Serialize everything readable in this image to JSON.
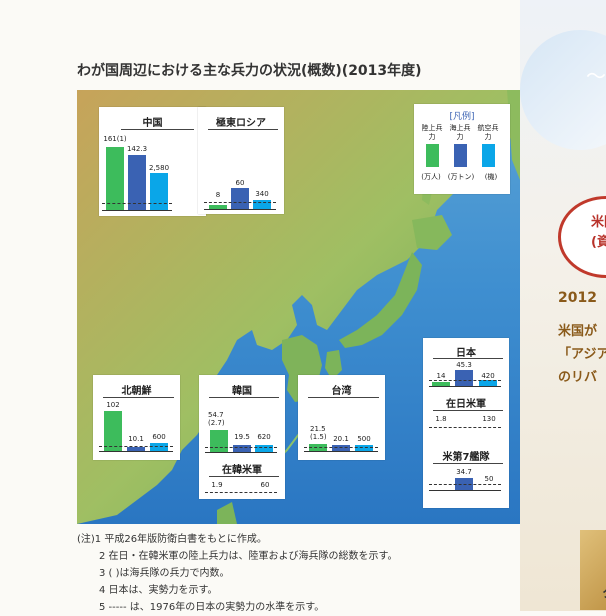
{
  "title": "わが国周辺における主な兵力の状況(概数)(2013年度)",
  "legend": {
    "title": "[凡例]",
    "items": [
      {
        "label": "陸上兵力",
        "unit": "(万人)",
        "color": "#3dbc5c"
      },
      {
        "label": "海上兵力",
        "unit": "(万トン)",
        "color": "#3a62b3"
      },
      {
        "label": "航空兵力",
        "unit": "(機)",
        "color": "#0aa6e8"
      }
    ]
  },
  "chart_data": [
    {
      "type": "bar",
      "title": "中国",
      "categories": [
        "陸上兵力",
        "海上兵力",
        "航空兵力"
      ],
      "values": [
        161,
        142.3,
        2580
      ],
      "labels": [
        "161(1)",
        "142.3",
        "2,580"
      ]
    },
    {
      "type": "bar",
      "title": "極東ロシア",
      "categories": [
        "陸上兵力",
        "海上兵力",
        "航空兵力"
      ],
      "values": [
        8,
        60,
        340
      ],
      "labels": [
        "8",
        "60",
        "340"
      ]
    },
    {
      "type": "bar",
      "title": "北朝鮮",
      "categories": [
        "陸上兵力",
        "海上兵力",
        "航空兵力"
      ],
      "values": [
        102,
        10.1,
        600
      ],
      "labels": [
        "102",
        "10.1",
        "600"
      ]
    },
    {
      "type": "bar",
      "title": "韓国",
      "categories": [
        "陸上兵力",
        "海上兵力",
        "航空兵力"
      ],
      "values": [
        54.7,
        19.5,
        620
      ],
      "labels": [
        "54.7\n(2.7)",
        "19.5",
        "620"
      ]
    },
    {
      "type": "bar",
      "title": "在韓米軍",
      "categories": [
        "陸上兵力",
        "航空兵力"
      ],
      "values": [
        1.9,
        60
      ],
      "labels": [
        "1.9",
        "60"
      ]
    },
    {
      "type": "bar",
      "title": "台湾",
      "categories": [
        "陸上兵力",
        "海上兵力",
        "航空兵力"
      ],
      "values": [
        21.5,
        20.1,
        500
      ],
      "labels": [
        "21.5\n(1.5)",
        "20.1",
        "500"
      ]
    },
    {
      "type": "bar",
      "title": "日本",
      "categories": [
        "陸上兵力",
        "海上兵力",
        "航空兵力"
      ],
      "values": [
        14,
        45.3,
        420
      ],
      "labels": [
        "14",
        "45.3",
        "420"
      ]
    },
    {
      "type": "bar",
      "title": "在日米軍",
      "categories": [
        "陸上兵力",
        "航空兵力"
      ],
      "values": [
        1.8,
        130
      ],
      "labels": [
        "1.8",
        "130"
      ]
    },
    {
      "type": "bar",
      "title": "米第7艦隊",
      "categories": [
        "海上兵力",
        "航空兵力"
      ],
      "values": [
        34.7,
        50
      ],
      "labels": [
        "34.7",
        "50"
      ]
    }
  ],
  "notes": [
    "(注)1 平成26年版防衛白書をもとに作成。",
    "2 在日・在韓米軍の陸上兵力は、陸軍および海兵隊の総数を示す。",
    "3 (  )は海兵隊の兵力で内数。",
    "4 日本は、実勢力を示す。",
    "5 ----- は、1976年の日本の実勢力の水準を示す。"
  ],
  "side": {
    "badge_line1": "米国",
    "badge_line2": "(資",
    "year": "2012",
    "line1": "米国が",
    "line2": "「アジア",
    "line3": "のリバ",
    "tilde": "〜",
    "gold_char": "ク"
  }
}
